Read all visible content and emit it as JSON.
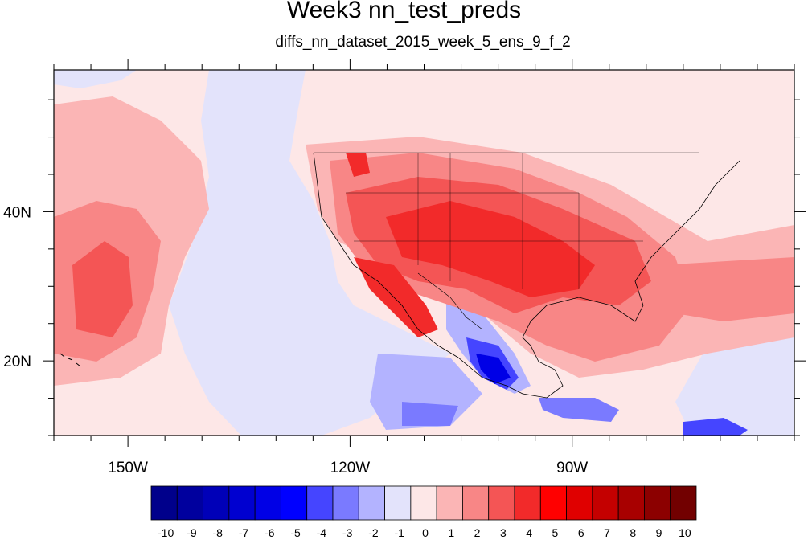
{
  "title": "Week3 nn_test_preds",
  "subtitle": "diffs_nn_dataset_2015_week_5_ens_9_f_2",
  "map": {
    "projection": "cylindrical-equidistant",
    "lon_range": [
      -160,
      -60
    ],
    "lat_range": [
      10,
      59
    ],
    "lon_ticks": [
      {
        "value": -150,
        "label": "150W"
      },
      {
        "value": -120,
        "label": "120W"
      },
      {
        "value": -90,
        "label": "90W"
      }
    ],
    "lat_ticks": [
      {
        "value": 40,
        "label": "40N"
      },
      {
        "value": 20,
        "label": "20N"
      }
    ],
    "background_color": "#fde7e7"
  },
  "colorbar": {
    "labels": [
      "-10",
      "-9",
      "-8",
      "-7",
      "-6",
      "-5",
      "-4",
      "-3",
      "-2",
      "-1",
      "0",
      "1",
      "2",
      "3",
      "4",
      "5",
      "6",
      "7",
      "8",
      "9",
      "10"
    ],
    "colors": [
      "#00008b",
      "#00009e",
      "#0000b8",
      "#0000d0",
      "#0000e6",
      "#0000ff",
      "#4545ff",
      "#7a7aff",
      "#b3b3ff",
      "#e3e3fb",
      "#fde7e7",
      "#fbb5b5",
      "#f88686",
      "#f45555",
      "#f22a2a",
      "#ff0000",
      "#e00000",
      "#c40000",
      "#a80000",
      "#8c0000",
      "#720000"
    ]
  }
}
